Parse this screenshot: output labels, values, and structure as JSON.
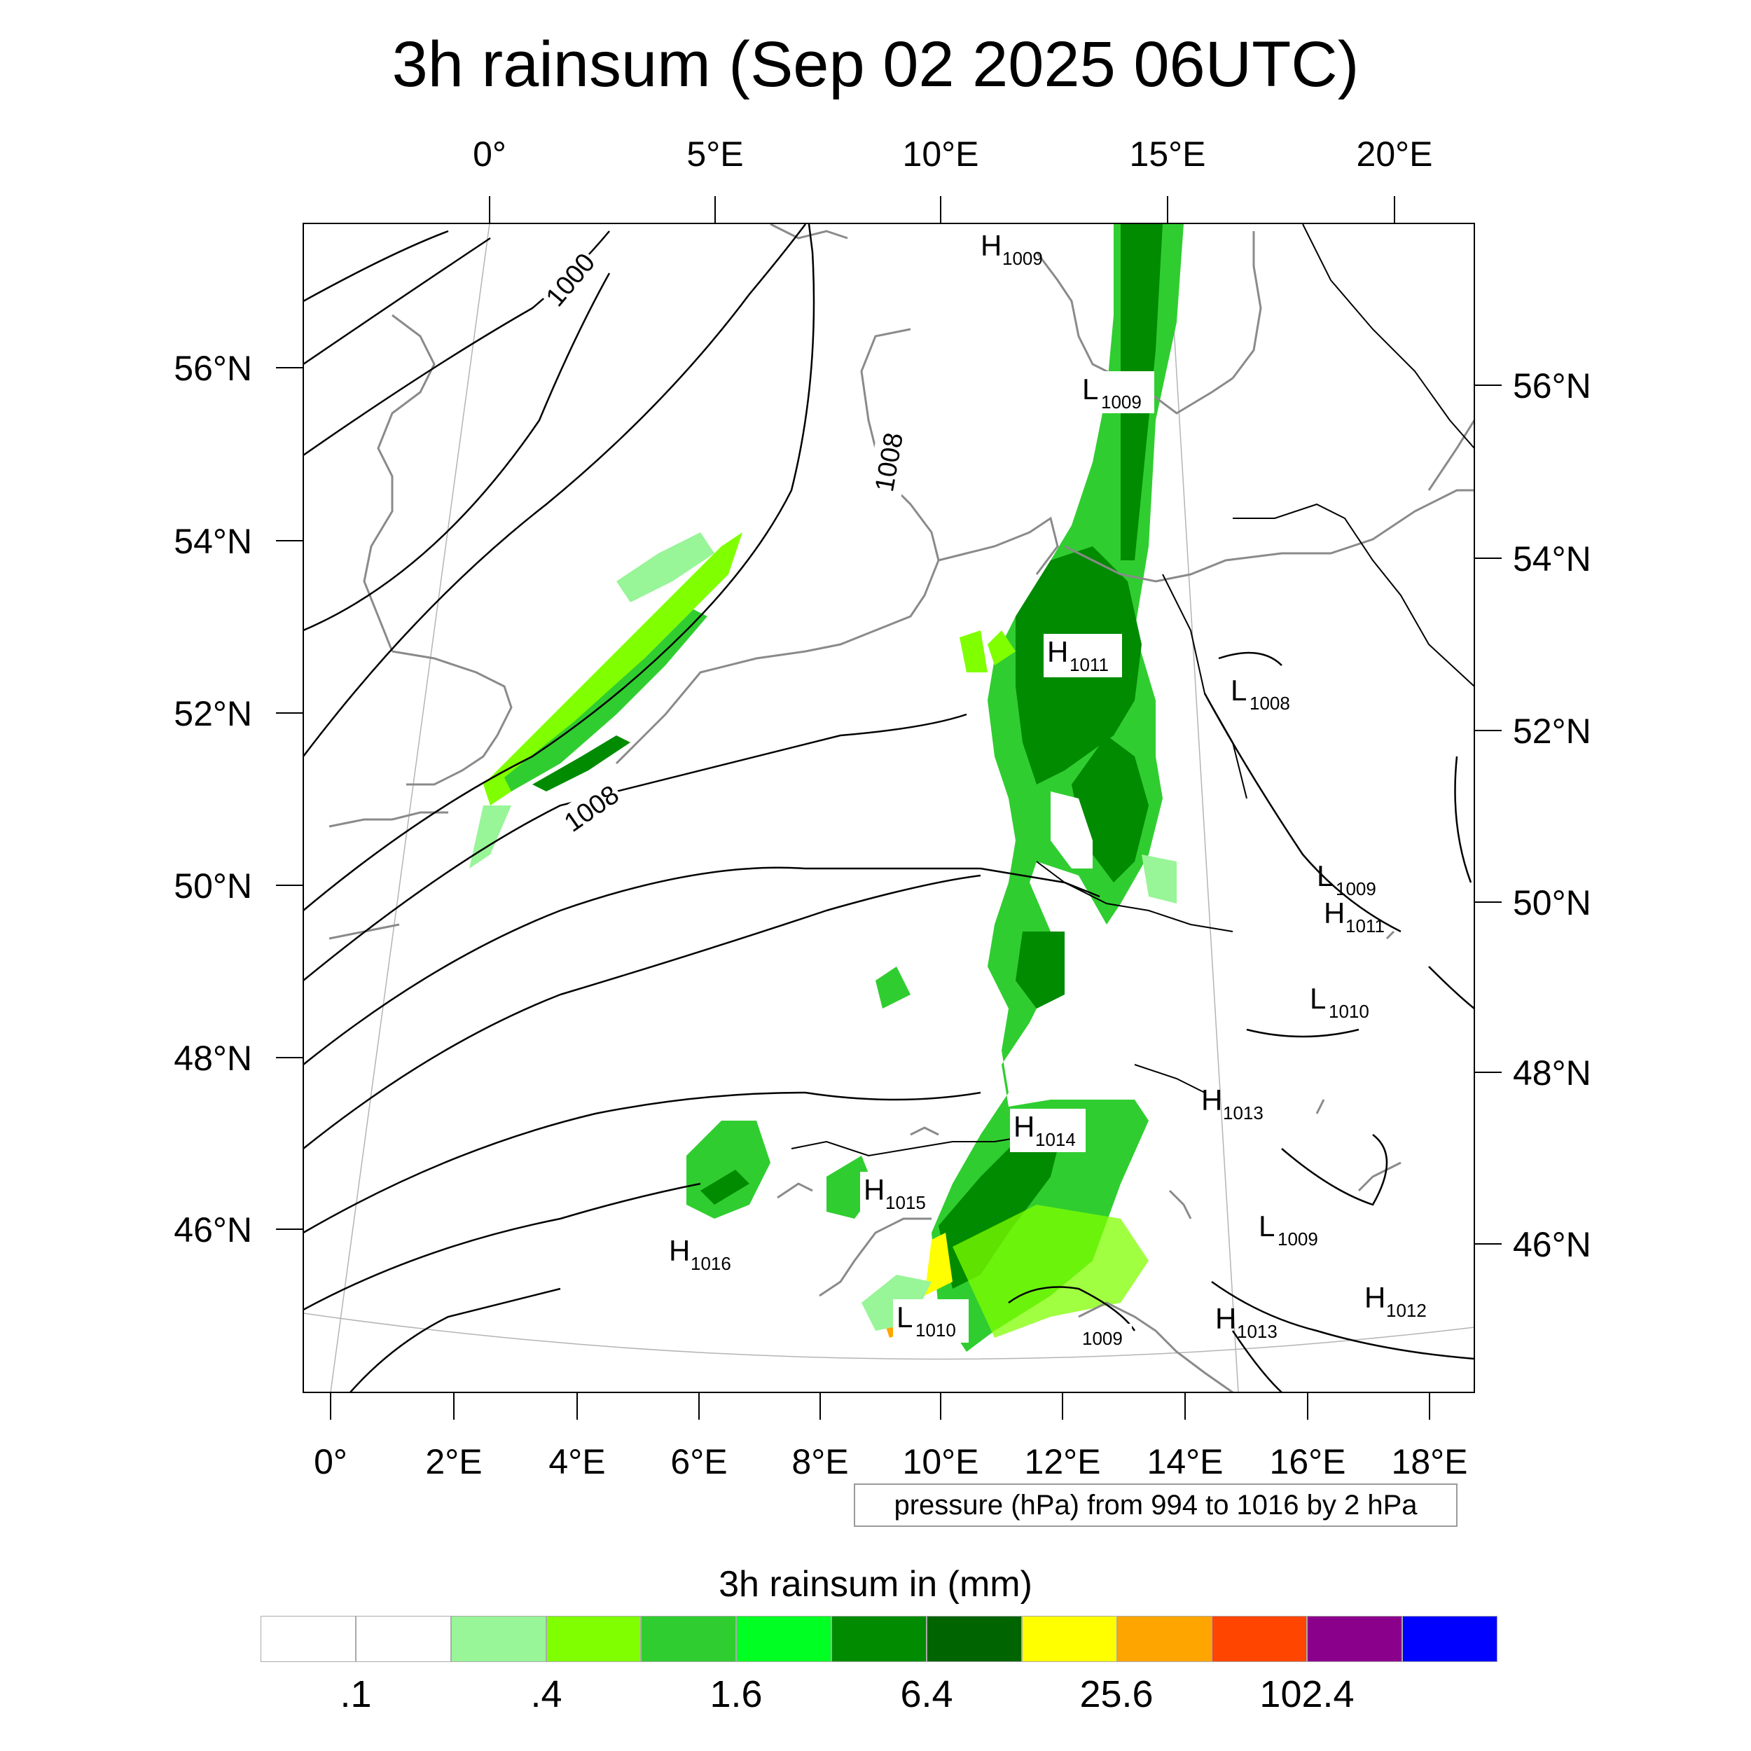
{
  "title": "3h rainsum (Sep 02 2025 06UTC)",
  "map": {
    "top_lon_labels": [
      "0°",
      "5°E",
      "10°E",
      "15°E",
      "20°E"
    ],
    "bottom_lon_labels": [
      "0°",
      "2°E",
      "4°E",
      "6°E",
      "8°E",
      "10°E",
      "12°E",
      "14°E",
      "16°E",
      "18°E"
    ],
    "left_lat_labels": [
      "56°N",
      "54°N",
      "52°N",
      "50°N",
      "48°N",
      "46°N"
    ],
    "right_lat_labels": [
      "56°N",
      "54°N",
      "52°N",
      "50°N",
      "48°N",
      "46°N"
    ],
    "isobar_labels": [
      "1000",
      "1008",
      "1008"
    ],
    "pressure_centers": [
      {
        "kind": "H",
        "value": "1009"
      },
      {
        "kind": "L",
        "value": "1009"
      },
      {
        "kind": "H",
        "value": "1011"
      },
      {
        "kind": "L",
        "value": "1008"
      },
      {
        "kind": "L",
        "value": "1009"
      },
      {
        "kind": "H",
        "value": "1011"
      },
      {
        "kind": "L",
        "value": "1010"
      },
      {
        "kind": "H",
        "value": "1013"
      },
      {
        "kind": "H",
        "value": "1014"
      },
      {
        "kind": "H",
        "value": "1015"
      },
      {
        "kind": "H",
        "value": "1016"
      },
      {
        "kind": "L",
        "value": "1009"
      },
      {
        "kind": "L",
        "value": "1010"
      },
      {
        "kind": "H",
        "value": "1012"
      },
      {
        "kind": "H",
        "value": "1013"
      },
      {
        "kind": "",
        "value": "1009"
      }
    ]
  },
  "pressure_note": "pressure (hPa) from 994 to 1016 by 2 hPa",
  "legend": {
    "title": "3h rainsum in (mm)",
    "colors": [
      "#ffffff",
      "#ffffff",
      "#98f598",
      "#80ff00",
      "#30cd30",
      "#00ff22",
      "#008b00",
      "#006400",
      "#ffff00",
      "#ffa500",
      "#ff4500",
      "#8b008b",
      "#0000ff"
    ],
    "labels": [
      ".1",
      ".4",
      "1.6",
      "6.4",
      "25.6",
      "102.4"
    ]
  }
}
